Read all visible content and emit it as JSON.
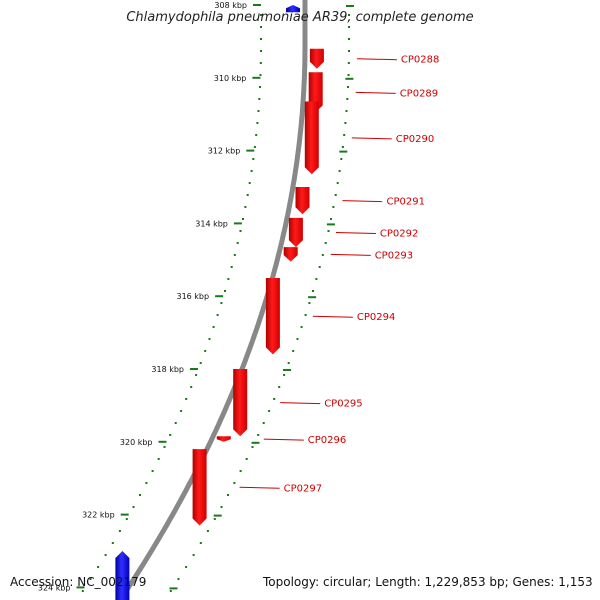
{
  "title": "Chlamydophila pneumoniae AR39, complete genome",
  "footer": {
    "accession": "Accession: NC_002179",
    "summary": "Topology: circular; Length: 1,229,853 bp; Genes: 1,153"
  },
  "colors": {
    "forward_gene": "#0000ee",
    "reverse_gene": "#ff0000",
    "backbone": "#888888",
    "tick": "#1a7a1a",
    "gene_label": "#cc0000",
    "ruler_label": "#111111"
  },
  "ruler": {
    "ticks": [
      "308 kbp",
      "310 kbp",
      "312 kbp",
      "314 kbp",
      "316 kbp",
      "318 kbp",
      "320 kbp",
      "322 kbp",
      "324 kbp"
    ]
  },
  "genes": [
    {
      "label": "CP0288",
      "strand": "reverse",
      "start_kbp": 309.2,
      "end_kbp": 309.75
    },
    {
      "label": "CP0289",
      "strand": "reverse",
      "start_kbp": 309.85,
      "end_kbp": 310.95
    },
    {
      "label": "CP0290",
      "strand": "reverse",
      "start_kbp": 310.65,
      "end_kbp": 312.65
    },
    {
      "label": "CP0291",
      "strand": "reverse",
      "start_kbp": 313.0,
      "end_kbp": 313.75
    },
    {
      "label": "CP0292",
      "strand": "reverse",
      "start_kbp": 313.85,
      "end_kbp": 314.65
    },
    {
      "label": "CP0293",
      "strand": "reverse",
      "start_kbp": 314.65,
      "end_kbp": 315.05
    },
    {
      "label": "CP0294",
      "strand": "reverse",
      "start_kbp": 315.5,
      "end_kbp": 317.6
    },
    {
      "label": "CP0295",
      "strand": "reverse",
      "start_kbp": 318.0,
      "end_kbp": 319.85
    },
    {
      "label": "CP0296",
      "strand": "reverse",
      "start_kbp": 319.85,
      "end_kbp": 320.0
    },
    {
      "label": "CP0297",
      "strand": "reverse",
      "start_kbp": 320.2,
      "end_kbp": 322.3
    },
    {
      "label": "",
      "strand": "forward",
      "start_kbp": 323.0,
      "end_kbp": 324.5
    },
    {
      "label": "",
      "strand": "forward",
      "start_kbp": 308.0,
      "end_kbp": 308.2
    }
  ]
}
